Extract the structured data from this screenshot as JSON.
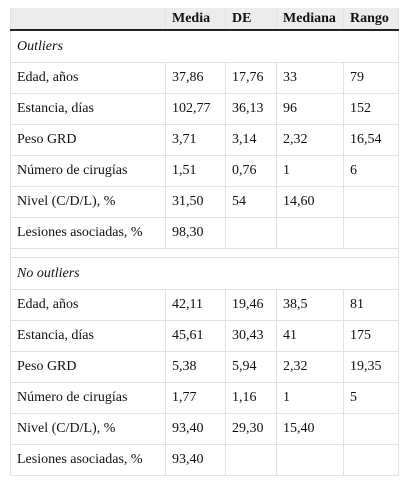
{
  "table": {
    "columns": [
      "Media",
      "DE",
      "Mediana",
      "Rango"
    ],
    "sections": [
      {
        "title": "Outliers",
        "rows": [
          [
            "Edad, años",
            "37,86",
            "17,76",
            "33",
            "79"
          ],
          [
            "Estancia, días",
            "102,77",
            "36,13",
            "96",
            "152"
          ],
          [
            "Peso GRD",
            "3,71",
            "3,14",
            "2,32",
            "16,54"
          ],
          [
            "Número de cirugías",
            "1,51",
            "0,76",
            "1",
            "6"
          ],
          [
            "Nivel (C/D/L), %",
            "31,50",
            "54",
            "14,60"
          ],
          [
            "Lesiones asociadas, %",
            "98,30"
          ]
        ]
      },
      {
        "title": "No outliers",
        "rows": [
          [
            "Edad, años",
            "42,11",
            "19,46",
            "38,5",
            "81"
          ],
          [
            "Estancia, días",
            "45,61",
            "30,43",
            "41",
            "175"
          ],
          [
            "Peso GRD",
            "5,38",
            "5,94",
            "2,32",
            "19,35"
          ],
          [
            "Número de cirugías",
            "1,77",
            "1,16",
            "1",
            "5"
          ],
          [
            "Nivel (C/D/L), %",
            "93,40",
            "29,30",
            "15,40"
          ],
          [
            "Lesiones asociadas, %",
            "93,40"
          ]
        ]
      }
    ]
  }
}
